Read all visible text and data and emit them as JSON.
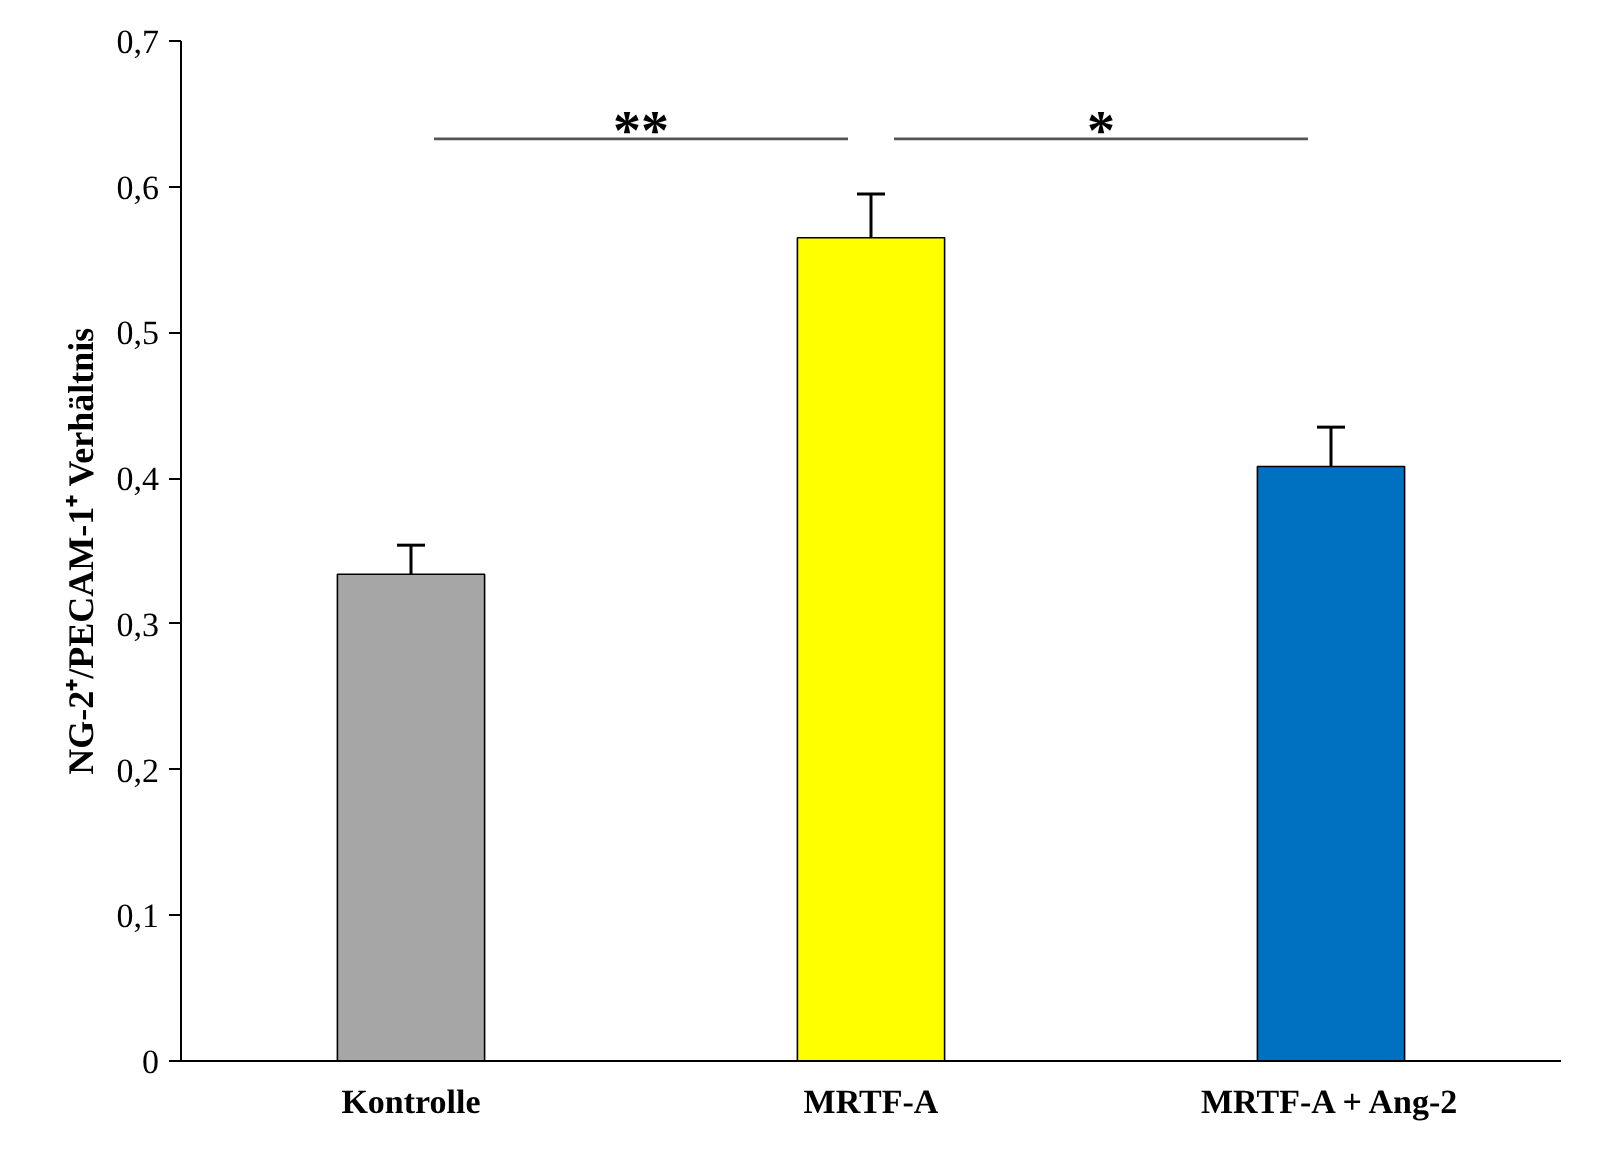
{
  "chart_data": {
    "type": "bar",
    "ylabel": "NG-2⁺/PECAM-1⁺ Verhältnis",
    "categories": [
      "Kontrolle",
      "MRTF-A",
      "MRTF-A + Ang-2"
    ],
    "values": [
      0.334,
      0.565,
      0.408
    ],
    "errors": [
      0.02,
      0.03,
      0.027
    ],
    "colors": [
      "#a6a6a6",
      "#ffff00",
      "#0070c0"
    ],
    "ylim": [
      0,
      0.7
    ],
    "yticks": [
      0,
      {
        "value": 0.1,
        "label": "0,1"
      },
      {
        "value": 0.2,
        "label": "0,2"
      },
      {
        "value": 0.3,
        "label": "0,3"
      },
      {
        "value": 0.4,
        "label": "0,4"
      },
      {
        "value": 0.5,
        "label": "0,5"
      },
      {
        "value": 0.6,
        "label": "0,6"
      },
      {
        "value": 0.7,
        "label": "0,7"
      }
    ],
    "annotations": [
      "**",
      "*"
    ],
    "grid": false
  }
}
